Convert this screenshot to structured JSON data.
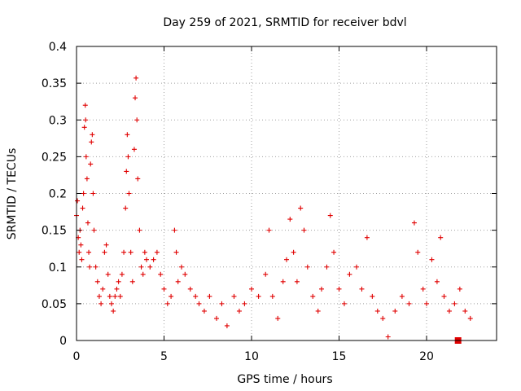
{
  "chart_data": {
    "type": "scatter",
    "title": "Day 259 of 2021, SRMTID for receiver bdvl",
    "xlabel": "GPS time / hours",
    "ylabel": "SRMTID / TECUs",
    "xlim": [
      0,
      24
    ],
    "ylim": [
      0,
      0.4
    ],
    "x_ticks": [
      0,
      5,
      10,
      15,
      20
    ],
    "x_tick_labels": [
      "0",
      "5",
      "10",
      "15",
      "20"
    ],
    "y_ticks": [
      0,
      0.05,
      0.1,
      0.15,
      0.2,
      0.25,
      0.3,
      0.35,
      0.4
    ],
    "y_tick_labels": [
      "0",
      "0.05",
      "0.1",
      "0.15",
      "0.2",
      "0.25",
      "0.3",
      "0.35",
      "0.4"
    ],
    "grid": true,
    "marker": "plus",
    "marker_color": "#e00000",
    "series": [
      {
        "name": "SRMTID",
        "points": [
          [
            0.0,
            0.17
          ],
          [
            0.05,
            0.19
          ],
          [
            0.1,
            0.14
          ],
          [
            0.15,
            0.12
          ],
          [
            0.2,
            0.15
          ],
          [
            0.25,
            0.13
          ],
          [
            0.3,
            0.11
          ],
          [
            0.35,
            0.18
          ],
          [
            0.4,
            0.2
          ],
          [
            0.45,
            0.29
          ],
          [
            0.5,
            0.32
          ],
          [
            0.52,
            0.3
          ],
          [
            0.55,
            0.25
          ],
          [
            0.6,
            0.22
          ],
          [
            0.65,
            0.16
          ],
          [
            0.7,
            0.12
          ],
          [
            0.75,
            0.1
          ],
          [
            0.8,
            0.24
          ],
          [
            0.85,
            0.27
          ],
          [
            0.9,
            0.28
          ],
          [
            0.95,
            0.2
          ],
          [
            1.0,
            0.15
          ],
          [
            1.1,
            0.1
          ],
          [
            1.2,
            0.08
          ],
          [
            1.3,
            0.06
          ],
          [
            1.4,
            0.05
          ],
          [
            1.5,
            0.07
          ],
          [
            1.6,
            0.12
          ],
          [
            1.7,
            0.13
          ],
          [
            1.8,
            0.09
          ],
          [
            1.9,
            0.06
          ],
          [
            2.0,
            0.05
          ],
          [
            2.1,
            0.04
          ],
          [
            2.2,
            0.06
          ],
          [
            2.3,
            0.07
          ],
          [
            2.4,
            0.08
          ],
          [
            2.5,
            0.06
          ],
          [
            2.6,
            0.09
          ],
          [
            2.7,
            0.12
          ],
          [
            2.8,
            0.18
          ],
          [
            2.85,
            0.23
          ],
          [
            2.9,
            0.28
          ],
          [
            2.95,
            0.25
          ],
          [
            3.0,
            0.2
          ],
          [
            3.1,
            0.12
          ],
          [
            3.2,
            0.08
          ],
          [
            3.3,
            0.26
          ],
          [
            3.35,
            0.33
          ],
          [
            3.4,
            0.357
          ],
          [
            3.45,
            0.3
          ],
          [
            3.5,
            0.22
          ],
          [
            3.6,
            0.15
          ],
          [
            3.7,
            0.1
          ],
          [
            3.8,
            0.09
          ],
          [
            3.9,
            0.12
          ],
          [
            4.0,
            0.11
          ],
          [
            4.2,
            0.1
          ],
          [
            4.4,
            0.11
          ],
          [
            4.6,
            0.12
          ],
          [
            4.8,
            0.09
          ],
          [
            5.0,
            0.07
          ],
          [
            5.2,
            0.05
          ],
          [
            5.4,
            0.06
          ],
          [
            5.6,
            0.15
          ],
          [
            5.7,
            0.12
          ],
          [
            5.8,
            0.08
          ],
          [
            6.0,
            0.1
          ],
          [
            6.2,
            0.09
          ],
          [
            6.5,
            0.07
          ],
          [
            6.8,
            0.06
          ],
          [
            7.0,
            0.05
          ],
          [
            7.3,
            0.04
          ],
          [
            7.6,
            0.06
          ],
          [
            8.0,
            0.03
          ],
          [
            8.3,
            0.05
          ],
          [
            8.6,
            0.02
          ],
          [
            9.0,
            0.06
          ],
          [
            9.3,
            0.04
          ],
          [
            9.6,
            0.05
          ],
          [
            10.0,
            0.07
          ],
          [
            10.4,
            0.06
          ],
          [
            10.8,
            0.09
          ],
          [
            11.0,
            0.15
          ],
          [
            11.2,
            0.06
          ],
          [
            11.5,
            0.03
          ],
          [
            11.8,
            0.08
          ],
          [
            12.0,
            0.11
          ],
          [
            12.2,
            0.165
          ],
          [
            12.4,
            0.12
          ],
          [
            12.6,
            0.08
          ],
          [
            12.8,
            0.18
          ],
          [
            13.0,
            0.15
          ],
          [
            13.2,
            0.1
          ],
          [
            13.5,
            0.06
          ],
          [
            13.8,
            0.04
          ],
          [
            14.0,
            0.07
          ],
          [
            14.3,
            0.1
          ],
          [
            14.5,
            0.17
          ],
          [
            14.7,
            0.12
          ],
          [
            15.0,
            0.07
          ],
          [
            15.3,
            0.05
          ],
          [
            15.6,
            0.09
          ],
          [
            16.0,
            0.1
          ],
          [
            16.3,
            0.07
          ],
          [
            16.6,
            0.14
          ],
          [
            16.9,
            0.06
          ],
          [
            17.2,
            0.04
          ],
          [
            17.5,
            0.03
          ],
          [
            17.8,
            0.005
          ],
          [
            18.2,
            0.04
          ],
          [
            18.6,
            0.06
          ],
          [
            19.0,
            0.05
          ],
          [
            19.3,
            0.16
          ],
          [
            19.5,
            0.12
          ],
          [
            19.8,
            0.07
          ],
          [
            20.0,
            0.05
          ],
          [
            20.3,
            0.11
          ],
          [
            20.6,
            0.08
          ],
          [
            20.8,
            0.14
          ],
          [
            21.0,
            0.06
          ],
          [
            21.3,
            0.04
          ],
          [
            21.6,
            0.05
          ],
          [
            21.9,
            0.07
          ],
          [
            22.2,
            0.04
          ],
          [
            22.5,
            0.03
          ]
        ]
      }
    ],
    "annotations": [
      {
        "type": "square-marker",
        "x": 21.8,
        "y": 0.0
      }
    ]
  }
}
